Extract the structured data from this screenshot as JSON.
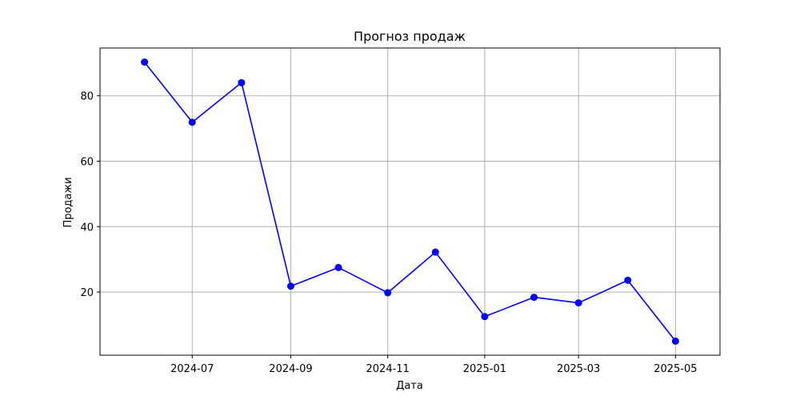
{
  "chart_data": {
    "type": "line",
    "title": "Прогноз продаж",
    "xlabel": "Дата",
    "ylabel": "Продажи",
    "x": [
      "2024-06-01",
      "2024-07-01",
      "2024-08-01",
      "2024-09-01",
      "2024-10-01",
      "2024-11-01",
      "2024-12-01",
      "2025-01-01",
      "2025-02-01",
      "2025-03-01",
      "2025-04-01",
      "2025-05-01"
    ],
    "series": [
      {
        "values": [
          90.3,
          71.9,
          84.0,
          21.8,
          27.5,
          19.8,
          32.2,
          12.5,
          18.4,
          16.7,
          23.6,
          5.0
        ],
        "color": "#0000ff",
        "marker": "circle"
      }
    ],
    "xticks": [
      "2024-07",
      "2024-09",
      "2024-11",
      "2025-01",
      "2025-03",
      "2025-05"
    ],
    "yticks": [
      20,
      40,
      60,
      80
    ],
    "xlim": [
      "2024-05-04",
      "2025-05-29"
    ],
    "ylim": [
      0.7,
      94.6
    ],
    "grid": true,
    "grid_color": "#b0b0b0"
  }
}
